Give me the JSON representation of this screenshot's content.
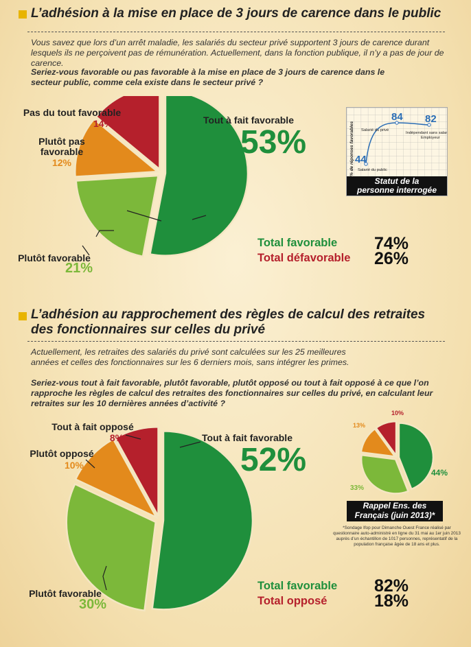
{
  "section1": {
    "title": "L’adhésion à la mise en place de 3 jours de carence dans le public",
    "intro": "Vous savez que lors d’un arrêt maladie, les salariés du secteur privé supportent 3 jours de carence durant lesquels ils ne perçoivent pas de rémunération. Actuellement, dans la fonction publique, il n’y a pas de jour de carence.",
    "question": "Seriez-vous favorable ou pas favorable à la mise en place de 3 jours de carence dans le secteur public, comme cela existe dans le secteur privé ?",
    "labels": {
      "tout_fait": "Tout à fait favorable",
      "plutot_fav": "Plutôt favorable",
      "plutot_pas_1": "Plutôt pas",
      "plutot_pas_2": "favorable",
      "pas_du_tout": "Pas du tout favorable"
    },
    "pct": {
      "tout_fait": "53%",
      "plutot_fav": "21%",
      "plutot_pas": "12%",
      "pas_du_tout": "14%"
    },
    "totals": {
      "fav_label": "Total favorable",
      "fav_value": "74%",
      "def_label": "Total défavorable",
      "def_value": "26%"
    },
    "inset": {
      "ylabel": "% de réponses favorables",
      "points": [
        {
          "label": "Salarié du public",
          "value": "44"
        },
        {
          "label": "Salarié du privé",
          "value": "84"
        },
        {
          "label": "Indépendant sans salarié / Employeur",
          "value": "82"
        }
      ],
      "caption_1": "Statut de la",
      "caption_2": "personne interrogée"
    }
  },
  "section2": {
    "title_1": "L’adhésion au rapprochement des règles de calcul des retraites",
    "title_2": "des fonctionnaires sur celles du privé",
    "intro": "Actuellement, les retraites des salariés du privé sont calculées sur les 25 meilleures années et celles des fonctionnaires sur les 6 derniers mois, sans intégrer les primes.",
    "question": "Seriez-vous tout à fait favorable, plutôt favorable, plutôt opposé ou tout à fait opposé à ce que l’on rapproche les règles de calcul des retraites des fonctionnaires sur celles du privé, en calculant leur retraites sur les 10 dernières années d’activité ?",
    "labels": {
      "tout_fait": "Tout à fait favorable",
      "plutot_fav": "Plutôt favorable",
      "plutot_oppose": "Plutôt opposé",
      "tout_oppose": "Tout à fait opposé"
    },
    "pct": {
      "tout_fait": "52%",
      "plutot_fav": "30%",
      "plutot_oppose": "10%",
      "tout_oppose": "8%"
    },
    "totals": {
      "fav_label": "Total favorable",
      "fav_value": "82%",
      "opp_label": "Total opposé",
      "opp_value": "18%"
    },
    "rappel": {
      "pct": {
        "tout_fait": "44%",
        "plutot_fav": "33%",
        "plutot_oppose": "13%",
        "tout_oppose": "10%"
      },
      "caption_1": "Rappel Ens. des",
      "caption_2": "Français (juin 2013)*",
      "note": "*Sondage Ifop pour Dimanche Ouest France réalisé par questionnaire auto-administré en ligne du 31 mai au 1er juin 2013 auprès d’un échantillon de 1017 personnes, représentatif de la population française âgée de 18 ans et plus."
    }
  },
  "colors": {
    "dark_green": "#1f8f3c",
    "light_green": "#7cb83a",
    "orange": "#e38a1c",
    "red": "#b5202c",
    "blue": "#2a6db5",
    "bullet": "#e8b400"
  },
  "chart_data": [
    {
      "type": "pie",
      "categories": [
        "Tout à fait favorable",
        "Plutôt favorable",
        "Plutôt pas favorable",
        "Pas du tout favorable"
      ],
      "values": [
        53,
        21,
        12,
        14
      ]
    },
    {
      "type": "line",
      "ylabel": "% de réponses favorables",
      "xlabel": "Statut de la personne interrogée",
      "categories": [
        "Salarié du public",
        "Salarié du privé",
        "Indépendant sans salarié / Employeur"
      ],
      "values": [
        44,
        84,
        82
      ]
    },
    {
      "type": "pie",
      "categories": [
        "Tout à fait favorable",
        "Plutôt favorable",
        "Plutôt opposé",
        "Tout à fait opposé"
      ],
      "values": [
        52,
        30,
        10,
        8
      ]
    },
    {
      "type": "pie",
      "title": "Rappel Ens. des Français (juin 2013)*",
      "categories": [
        "Tout à fait favorable",
        "Plutôt favorable",
        "Plutôt opposé",
        "Tout à fait opposé"
      ],
      "values": [
        44,
        33,
        13,
        10
      ]
    }
  ]
}
